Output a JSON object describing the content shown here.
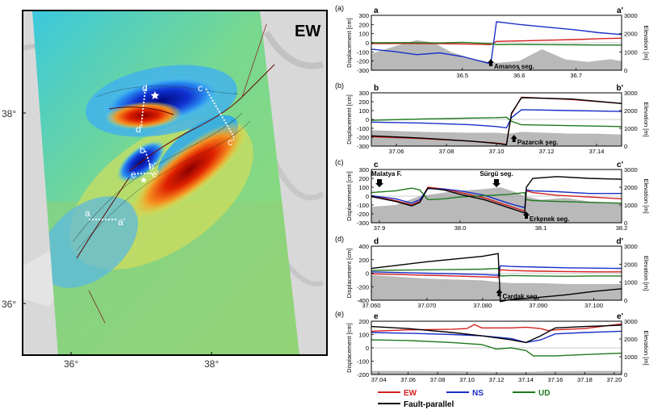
{
  "map": {
    "badge": "EW",
    "lat_labels": [
      "38°",
      "36°"
    ],
    "lon_labels": [
      "36°",
      "38°"
    ],
    "profile_labels": {
      "a": "a",
      "a_prime": "a'",
      "b": "b",
      "b_prime": "b'",
      "c": "c",
      "c_prime": "c'",
      "d": "d",
      "d_prime": "d'",
      "e": "e",
      "e_prime": "e'"
    }
  },
  "common": {
    "ylabel_left": "Displacement [cm]",
    "ylabel_right": "Elevation [m]",
    "elev_ticks": [
      0,
      1000,
      2000,
      3000
    ],
    "elev_lim": [
      0,
      3000
    ]
  },
  "colors": {
    "EW": "#d42020",
    "NS": "#1a2ec8",
    "UD": "#1e7a1e",
    "Fault-parallel": "#000000",
    "terrain": "#b9b9b9"
  },
  "legend": {
    "items": [
      {
        "name": "EW",
        "color": "#d42020"
      },
      {
        "name": "NS",
        "color": "#1a2ec8"
      },
      {
        "name": "UD",
        "color": "#1e7a1e"
      },
      {
        "name": "Fault-parallel",
        "color": "#000000"
      }
    ]
  },
  "chart_data": [
    {
      "type": "line",
      "panel": "(a)",
      "start_label": "a",
      "end_label": "a'",
      "xlim": [
        36.34,
        36.78
      ],
      "xticks": [
        36.5,
        36.6,
        36.7
      ],
      "ylim": [
        -300,
        300
      ],
      "yticks": [
        -300,
        -200,
        -100,
        0,
        100,
        200,
        300
      ],
      "annotations": [
        {
          "text": "Amanos seg.",
          "x": 36.55
        }
      ],
      "elevation": {
        "x": [
          36.34,
          36.38,
          36.42,
          36.45,
          36.48,
          36.52,
          36.56,
          36.6,
          36.64,
          36.68,
          36.72,
          36.76,
          36.78
        ],
        "values": [
          900,
          1300,
          1650,
          1500,
          1000,
          600,
          400,
          500,
          1150,
          600,
          450,
          600,
          500
        ]
      },
      "series": [
        {
          "name": "EW",
          "x": [
            36.34,
            36.4,
            36.46,
            36.52,
            36.55,
            36.56,
            36.6,
            36.65,
            36.7,
            36.74,
            36.78
          ],
          "values": [
            -10,
            -8,
            -10,
            -15,
            -20,
            15,
            20,
            28,
            35,
            45,
            50
          ]
        },
        {
          "name": "NS",
          "x": [
            36.34,
            36.38,
            36.42,
            36.46,
            36.5,
            36.55,
            36.56,
            36.6,
            36.65,
            36.7,
            36.74,
            36.78
          ],
          "values": [
            -70,
            -95,
            -130,
            -110,
            -150,
            -230,
            230,
            200,
            170,
            140,
            110,
            90
          ]
        },
        {
          "name": "UD",
          "x": [
            36.34,
            36.4,
            36.46,
            36.5,
            36.55,
            36.56,
            36.6,
            36.65,
            36.7,
            36.74,
            36.78
          ],
          "values": [
            0,
            2,
            -2,
            5,
            -10,
            -20,
            -18,
            -20,
            -22,
            -25,
            -25
          ]
        }
      ]
    },
    {
      "type": "line",
      "panel": "(b)",
      "start_label": "b",
      "end_label": "b'",
      "xlim": [
        37.05,
        37.15
      ],
      "xticks": [
        37.06,
        37.08,
        37.1,
        37.12,
        37.14
      ],
      "ylim": [
        -300,
        300
      ],
      "yticks": [
        -300,
        -200,
        -100,
        0,
        100,
        200,
        300
      ],
      "annotations": [
        {
          "text": "Pazarcık seg.",
          "x": 37.107
        }
      ],
      "elevation": {
        "x": [
          37.05,
          37.07,
          37.09,
          37.1,
          37.105,
          37.11,
          37.12,
          37.13,
          37.14,
          37.15
        ],
        "values": [
          900,
          800,
          750,
          750,
          700,
          800,
          750,
          700,
          700,
          650
        ]
      },
      "series": [
        {
          "name": "EW",
          "x": [
            37.05,
            37.07,
            37.09,
            37.1,
            37.104,
            37.106,
            37.11,
            37.13,
            37.15
          ],
          "values": [
            -195,
            -215,
            -245,
            -265,
            -280,
            60,
            250,
            225,
            180
          ]
        },
        {
          "name": "NS",
          "x": [
            37.05,
            37.07,
            37.09,
            37.1,
            37.104,
            37.106,
            37.11,
            37.13,
            37.15
          ],
          "values": [
            -30,
            -40,
            -60,
            -80,
            -95,
            20,
            110,
            100,
            90
          ]
        },
        {
          "name": "UD",
          "x": [
            37.05,
            37.07,
            37.09,
            37.1,
            37.104,
            37.106,
            37.11,
            37.13,
            37.15
          ],
          "values": [
            -10,
            5,
            15,
            20,
            25,
            -20,
            -60,
            -70,
            -80
          ]
        },
        {
          "name": "Fault-parallel",
          "x": [
            37.05,
            37.07,
            37.09,
            37.1,
            37.104,
            37.106,
            37.11,
            37.13,
            37.15
          ],
          "values": [
            -185,
            -210,
            -245,
            -270,
            -285,
            70,
            245,
            230,
            180
          ]
        }
      ]
    },
    {
      "type": "line",
      "panel": "(c)",
      "start_label": "c",
      "end_label": "c'",
      "xlim": [
        37.89,
        38.2
      ],
      "xticks": [
        37.9,
        38.0,
        38.1,
        38.2
      ],
      "ylim": [
        -300,
        300
      ],
      "yticks": [
        -300,
        -200,
        -100,
        0,
        100,
        200,
        300
      ],
      "annotations": [
        {
          "text": "Malatya F.",
          "x": 37.9
        },
        {
          "text": "Sürgü seg.",
          "x": 38.045
        },
        {
          "text": "Erkenek seg.",
          "x": 38.082
        }
      ],
      "elevation": {
        "x": [
          37.89,
          37.92,
          37.95,
          37.98,
          38.0,
          38.03,
          38.05,
          38.07,
          38.08,
          38.1,
          38.13,
          38.16,
          38.2
        ],
        "values": [
          900,
          1000,
          1500,
          1700,
          1800,
          1900,
          2000,
          1700,
          1500,
          1300,
          1400,
          1200,
          1100
        ]
      },
      "series": [
        {
          "name": "EW",
          "x": [
            37.89,
            37.92,
            37.94,
            37.95,
            37.96,
            37.98,
            38.0,
            38.03,
            38.06,
            38.08,
            38.082,
            38.09,
            38.12,
            38.16,
            38.2
          ],
          "values": [
            0,
            -50,
            -100,
            -60,
            100,
            80,
            40,
            -20,
            -110,
            -170,
            60,
            40,
            10,
            -10,
            -30
          ]
        },
        {
          "name": "NS",
          "x": [
            37.89,
            37.92,
            37.94,
            37.95,
            37.96,
            37.98,
            38.0,
            38.03,
            38.06,
            38.08,
            38.082,
            38.09,
            38.12,
            38.16,
            38.2
          ],
          "values": [
            5,
            -30,
            -80,
            -40,
            85,
            80,
            60,
            10,
            -80,
            -130,
            70,
            60,
            50,
            30,
            30
          ]
        },
        {
          "name": "UD",
          "x": [
            37.89,
            37.92,
            37.94,
            37.95,
            37.96,
            37.98,
            38.0,
            38.03,
            38.06,
            38.08,
            38.082,
            38.09,
            38.12,
            38.16,
            38.2
          ],
          "values": [
            40,
            60,
            90,
            70,
            -40,
            -30,
            -10,
            5,
            20,
            40,
            -40,
            -50,
            -60,
            -70,
            -80
          ]
        },
        {
          "name": "Fault-parallel",
          "x": [
            37.89,
            37.92,
            37.94,
            37.95,
            37.96,
            37.98,
            38.0,
            38.03,
            38.06,
            38.08,
            38.082,
            38.09,
            38.12,
            38.16,
            38.2
          ],
          "values": [
            -5,
            -60,
            -110,
            -70,
            90,
            70,
            20,
            -40,
            -130,
            -190,
            100,
            200,
            220,
            200,
            190
          ]
        }
      ]
    },
    {
      "type": "line",
      "panel": "(d)",
      "start_label": "d",
      "end_label": "d'",
      "xlim": [
        37.06,
        37.105
      ],
      "xticks": [
        37.06,
        37.07,
        37.08,
        37.09,
        37.1
      ],
      "ylim": [
        -400,
        400
      ],
      "yticks": [
        -400,
        -200,
        0,
        200,
        400
      ],
      "annotations": [
        {
          "text": "Çardak seg.",
          "x": 37.083
        }
      ],
      "elevation": {
        "x": [
          37.06,
          37.065,
          37.07,
          37.075,
          37.08,
          37.083,
          37.085,
          37.09,
          37.095,
          37.1,
          37.105
        ],
        "values": [
          1400,
          1300,
          1200,
          1150,
          1100,
          1000,
          950,
          950,
          900,
          900,
          900
        ]
      },
      "series": [
        {
          "name": "EW",
          "x": [
            37.06,
            37.065,
            37.07,
            37.075,
            37.08,
            37.0828,
            37.0832,
            37.085,
            37.09,
            37.095,
            37.1,
            37.105
          ],
          "values": [
            -10,
            -20,
            -30,
            -40,
            -55,
            -60,
            50,
            40,
            30,
            25,
            20,
            20
          ]
        },
        {
          "name": "NS",
          "x": [
            37.06,
            37.065,
            37.07,
            37.075,
            37.08,
            37.0828,
            37.0832,
            37.085,
            37.09,
            37.095,
            37.1,
            37.105
          ],
          "values": [
            20,
            10,
            0,
            -10,
            -20,
            -30,
            110,
            100,
            90,
            80,
            75,
            70
          ]
        },
        {
          "name": "UD",
          "x": [
            37.06,
            37.065,
            37.07,
            37.075,
            37.08,
            37.0828,
            37.0832,
            37.085,
            37.09,
            37.095,
            37.1,
            37.105
          ],
          "values": [
            40,
            45,
            50,
            55,
            60,
            70,
            -40,
            -35,
            -40,
            -45,
            -40,
            -40
          ]
        },
        {
          "name": "Fault-parallel",
          "x": [
            37.06,
            37.065,
            37.07,
            37.075,
            37.08,
            37.0828,
            37.0832,
            37.085,
            37.09,
            37.095,
            37.1,
            37.105
          ],
          "values": [
            70,
            120,
            170,
            210,
            250,
            290,
            -420,
            -390,
            -360,
            -320,
            -270,
            -230
          ]
        }
      ]
    },
    {
      "type": "line",
      "panel": "(e)",
      "start_label": "e",
      "end_label": "e'",
      "xlim": [
        37.035,
        37.205
      ],
      "xticks": [
        37.04,
        37.06,
        37.08,
        37.1,
        37.12,
        37.14,
        37.16,
        37.18,
        37.2
      ],
      "ylim": [
        -200,
        200
      ],
      "yticks": [
        -200,
        -100,
        0,
        100,
        200
      ],
      "annotations": [],
      "elevation": {
        "x": [
          37.035,
          37.06,
          37.09,
          37.12,
          37.14,
          37.16,
          37.18,
          37.205
        ],
        "values": [
          200,
          200,
          180,
          150,
          150,
          180,
          200,
          200
        ]
      },
      "series": [
        {
          "name": "EW",
          "x": [
            37.035,
            37.06,
            37.09,
            37.1,
            37.105,
            37.11,
            37.13,
            37.14,
            37.15,
            37.155,
            37.16,
            37.18,
            37.205
          ],
          "values": [
            125,
            135,
            140,
            145,
            175,
            150,
            150,
            155,
            145,
            130,
            135,
            145,
            180
          ]
        },
        {
          "name": "NS",
          "x": [
            37.035,
            37.06,
            37.09,
            37.11,
            37.13,
            37.14,
            37.15,
            37.16,
            37.18,
            37.205
          ],
          "values": [
            115,
            110,
            100,
            90,
            70,
            40,
            60,
            105,
            115,
            125
          ]
        },
        {
          "name": "UD",
          "x": [
            37.035,
            37.06,
            37.09,
            37.11,
            37.12,
            37.13,
            37.14,
            37.145,
            37.16,
            37.18,
            37.205
          ],
          "values": [
            60,
            55,
            40,
            25,
            -10,
            0,
            -20,
            -60,
            -60,
            -50,
            -40
          ]
        },
        {
          "name": "Fault-parallel",
          "x": [
            37.035,
            37.06,
            37.09,
            37.11,
            37.13,
            37.14,
            37.15,
            37.16,
            37.18,
            37.205
          ],
          "values": [
            160,
            145,
            115,
            90,
            60,
            40,
            90,
            150,
            160,
            170
          ]
        }
      ]
    }
  ]
}
